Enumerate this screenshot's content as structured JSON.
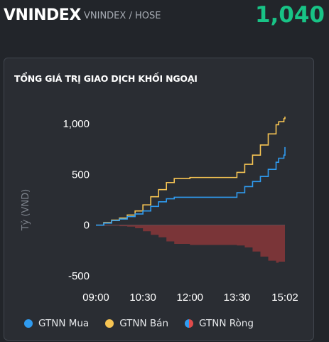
{
  "header": {
    "ticker": "VNINDEX",
    "subtitle": "VNINDEX / HOSE",
    "price": "1,040",
    "price_color": "#18c386"
  },
  "card": {
    "title": "TỔNG GIÁ TRỊ GIAO DỊCH KHỐI NGOẠI"
  },
  "chart_data": {
    "type": "area",
    "title": "TỔNG GIÁ TRỊ GIAO DỊCH KHỐI NGOẠI",
    "ylabel": "Tỷ (VND)",
    "xlabel": "",
    "ylim": [
      -500,
      1000
    ],
    "yticks": [
      1000,
      500,
      0,
      -500
    ],
    "ytick_labels": [
      "1,000",
      "500",
      "0",
      "-500"
    ],
    "xlim": [
      "09:00",
      "15:02"
    ],
    "xticks": [
      "09:00",
      "10:30",
      "12:00",
      "13:30",
      "15:02"
    ],
    "grid": false,
    "legend_position": "bottom",
    "x": [
      "09:00",
      "09:15",
      "09:30",
      "09:45",
      "10:00",
      "10:15",
      "10:30",
      "10:45",
      "11:00",
      "11:15",
      "11:30",
      "12:00",
      "12:30",
      "13:00",
      "13:15",
      "13:30",
      "13:45",
      "14:00",
      "14:15",
      "14:30",
      "14:45",
      "14:50",
      "15:00",
      "15:02"
    ],
    "series": [
      {
        "name": "GTNN Mua",
        "color": "#2f9bf0",
        "type": "line",
        "values": [
          0,
          20,
          45,
          60,
          85,
          110,
          140,
          185,
          230,
          260,
          275,
          275,
          275,
          275,
          275,
          320,
          380,
          430,
          480,
          550,
          620,
          660,
          690,
          770
        ]
      },
      {
        "name": "GTNN Bán",
        "color": "#f6c453",
        "type": "line",
        "values": [
          0,
          25,
          50,
          70,
          100,
          140,
          200,
          280,
          350,
          420,
          460,
          470,
          470,
          470,
          470,
          520,
          600,
          690,
          790,
          900,
          990,
          1020,
          1050,
          1070
        ]
      },
      {
        "name": "GTNN Ròng",
        "color": "#7a3538",
        "type": "area",
        "values": [
          0,
          -5,
          -5,
          -10,
          -15,
          -30,
          -60,
          -95,
          -120,
          -160,
          -185,
          -195,
          -195,
          -195,
          -195,
          -200,
          -220,
          -260,
          -310,
          -350,
          -370,
          -360,
          -360,
          -300
        ]
      }
    ],
    "legend_colors": {
      "mua": "#2f9bf0",
      "ban": "#f6c453",
      "rong_a": "#2f9bf0",
      "rong_b": "#e04b4b"
    }
  },
  "legend": {
    "mua": "GTNN Mua",
    "ban": "GTNN Bán",
    "rong": "GTNN Ròng"
  }
}
